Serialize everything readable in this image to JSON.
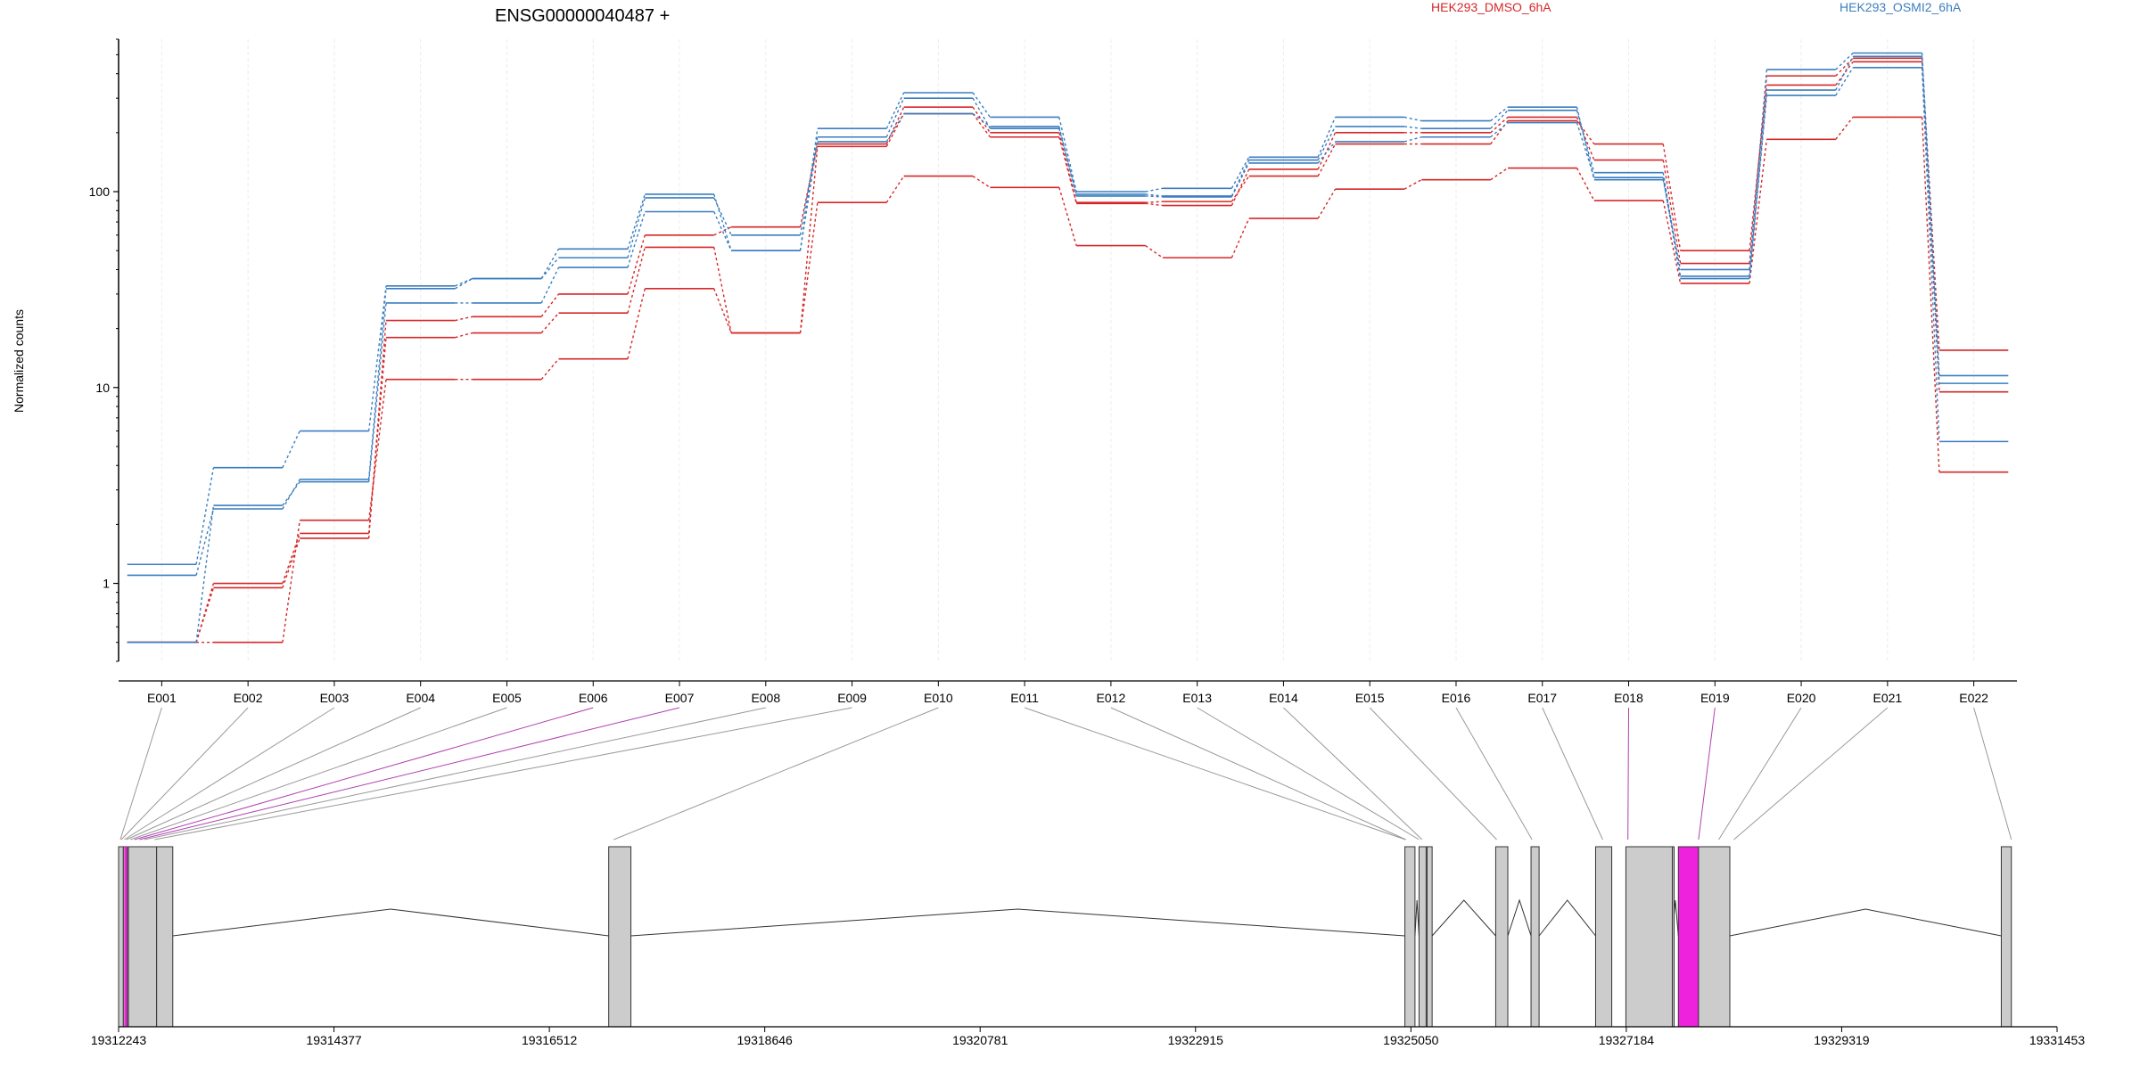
{
  "chart_data": {
    "type": "line",
    "title": "ENSG00000040487 +",
    "ylabel": "Normalized counts",
    "y_scale": "log",
    "ylim": [
      0.4,
      600
    ],
    "y_ticks": [
      1,
      10,
      100
    ],
    "y_tick_labels": [
      "1",
      "10",
      "100"
    ],
    "grid": "vertical, light",
    "legend": [
      {
        "name": "HEK293_DMSO_6hA",
        "color": "#d62728",
        "position": "top-center"
      },
      {
        "name": "HEK293_OSMI2_6hA",
        "color": "#3a7ebf",
        "position": "top-right"
      }
    ],
    "categories": [
      "E001",
      "E002",
      "E003",
      "E004",
      "E005",
      "E006",
      "E007",
      "E008",
      "E009",
      "E010",
      "E011",
      "E012",
      "E013",
      "E014",
      "E015",
      "E016",
      "E017",
      "E018",
      "E019",
      "E020",
      "E021",
      "E022"
    ],
    "series": [
      {
        "group": "HEK293_DMSO_6hA",
        "color": "#d62728",
        "values": [
          0.5,
          1.0,
          1.8,
          18,
          19,
          24,
          52,
          19,
          170,
          250,
          190,
          87,
          85,
          130,
          200,
          200,
          240,
          145,
          43,
          390,
          480,
          15.5
        ]
      },
      {
        "group": "HEK293_DMSO_6hA",
        "color": "#d62728",
        "values": [
          0.5,
          0.95,
          1.7,
          22,
          23,
          30,
          60,
          66,
          175,
          270,
          200,
          88,
          89,
          120,
          175,
          175,
          230,
          175,
          50,
          350,
          460,
          9.5
        ]
      },
      {
        "group": "HEK293_DMSO_6hA",
        "color": "#d62728",
        "values": [
          0.5,
          0.5,
          2.1,
          11,
          11,
          14,
          32,
          19,
          88,
          120,
          105,
          53,
          46,
          73,
          103,
          115,
          132,
          90,
          34,
          185,
          240,
          3.7
        ]
      },
      {
        "group": "HEK293_OSMI2_6hA",
        "color": "#3a7ebf",
        "values": [
          1.25,
          3.9,
          6.0,
          33,
          36,
          51,
          97,
          50,
          210,
          320,
          240,
          100,
          104,
          150,
          240,
          230,
          270,
          115,
          40,
          420,
          510,
          11.5
        ]
      },
      {
        "group": "HEK293_OSMI2_6hA",
        "color": "#3a7ebf",
        "values": [
          1.1,
          2.4,
          3.4,
          32,
          36,
          46,
          93,
          60,
          190,
          300,
          210,
          97,
          95,
          145,
          215,
          210,
          260,
          125,
          37,
          330,
          490,
          10.5
        ]
      },
      {
        "group": "HEK293_OSMI2_6hA",
        "color": "#3a7ebf",
        "values": [
          0.5,
          2.5,
          3.3,
          27,
          27,
          41,
          79,
          50,
          180,
          250,
          215,
          95,
          94,
          140,
          180,
          190,
          225,
          118,
          36,
          310,
          430,
          5.3
        ]
      }
    ],
    "genomic_axis": {
      "tick_labels": [
        "19312243",
        "19314377",
        "19316512",
        "19318646",
        "19320781",
        "19322915",
        "19325050",
        "19327184",
        "19329319",
        "19331453"
      ],
      "range": [
        19312243,
        19331453
      ]
    },
    "highlighted_exon": "E018",
    "highlight_color": "#ee22dd",
    "exon_fill_color": "#cccccc"
  }
}
